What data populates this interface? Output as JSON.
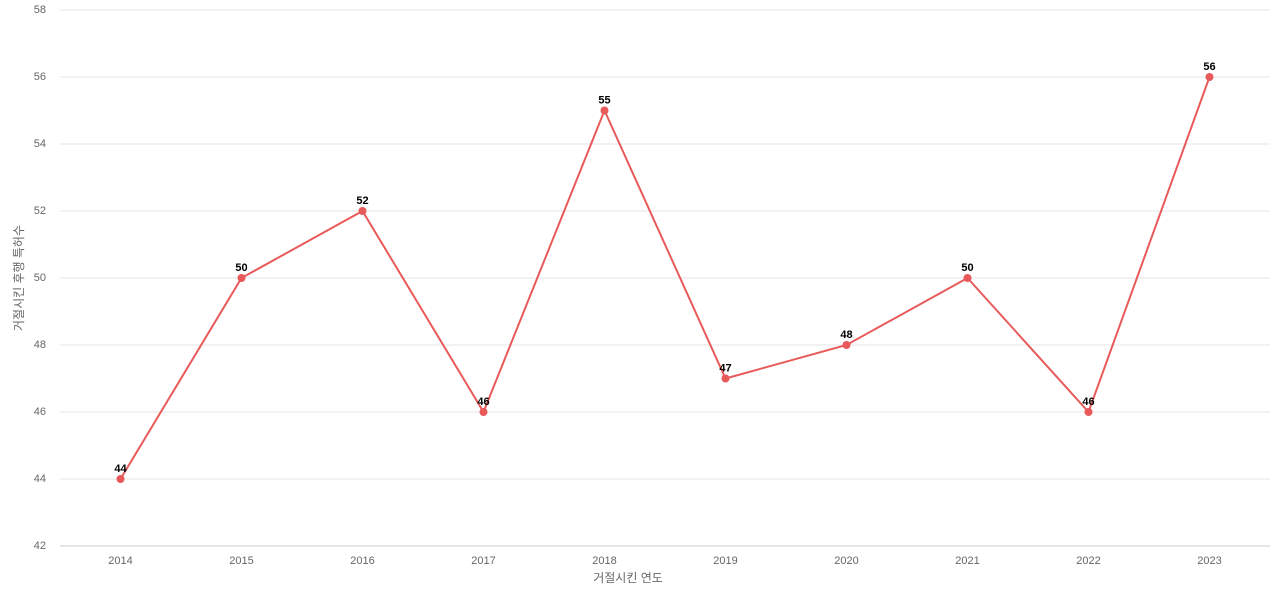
{
  "chart_data": {
    "type": "line",
    "x_label": "거절시킨 연도",
    "y_label": "거절시킨 후행 특허수",
    "categories": [
      "2014",
      "2015",
      "2016",
      "2017",
      "2018",
      "2019",
      "2020",
      "2021",
      "2022",
      "2023"
    ],
    "series": [
      {
        "color": "#e85a5a",
        "values": [
          44,
          50,
          52,
          46,
          55,
          47,
          48,
          50,
          46,
          56
        ]
      }
    ],
    "ylim": [
      42,
      58
    ],
    "yticks": [
      42,
      44,
      46,
      48,
      50,
      52,
      54,
      56,
      58
    ],
    "grid": true
  }
}
